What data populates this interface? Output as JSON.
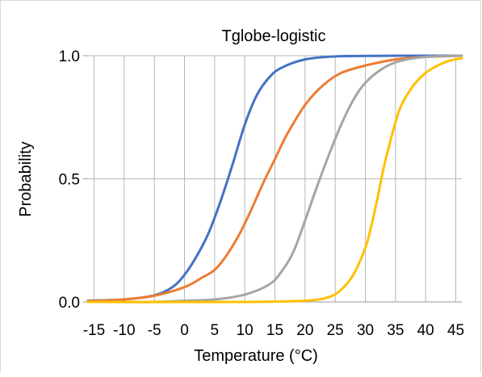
{
  "chart_data": {
    "type": "line",
    "title": "Tglobe-logistic",
    "xlabel": "Temperature (°C)",
    "ylabel": "Probability",
    "xlim": [
      -16,
      46
    ],
    "ylim": [
      0,
      1
    ],
    "x_ticks": [
      -15,
      -10,
      -5,
      0,
      5,
      10,
      15,
      20,
      25,
      30,
      35,
      40,
      45
    ],
    "x_tick_labels": [
      "-15",
      "-10",
      "-5",
      "0",
      "5",
      "10",
      "15",
      "20",
      "25",
      "30",
      "35",
      "40",
      "45"
    ],
    "y_ticks": [
      0,
      0.5,
      1
    ],
    "y_tick_labels": [
      "0.0",
      "0.5",
      "1.0"
    ],
    "grid": true,
    "legend": "none",
    "series": [
      {
        "color": "#4472C4",
        "x": [
          -16,
          -10,
          -5,
          -2,
          0,
          2,
          4,
          6,
          8,
          10,
          12,
          14,
          16,
          20,
          25,
          30,
          35,
          46
        ],
        "y": [
          0.005,
          0.01,
          0.027,
          0.06,
          0.11,
          0.185,
          0.28,
          0.41,
          0.56,
          0.72,
          0.84,
          0.91,
          0.95,
          0.985,
          0.997,
          0.999,
          1.0,
          1.0
        ]
      },
      {
        "color": "#ED7D31",
        "x": [
          -16,
          -10,
          -5,
          0,
          3,
          5,
          7,
          9,
          11,
          13,
          15,
          17,
          20,
          23,
          26,
          30,
          35,
          40,
          46
        ],
        "y": [
          0.003,
          0.01,
          0.025,
          0.06,
          0.1,
          0.13,
          0.19,
          0.27,
          0.37,
          0.48,
          0.58,
          0.68,
          0.8,
          0.88,
          0.93,
          0.96,
          0.985,
          0.995,
          1.0
        ]
      },
      {
        "color": "#A5A5A5",
        "x": [
          -16,
          -5,
          0,
          5,
          10,
          14,
          16,
          18,
          20,
          22,
          24,
          26,
          28,
          30,
          33,
          36,
          40,
          46
        ],
        "y": [
          0.0,
          0.0,
          0.005,
          0.01,
          0.03,
          0.07,
          0.12,
          0.2,
          0.33,
          0.47,
          0.6,
          0.72,
          0.82,
          0.89,
          0.95,
          0.98,
          0.995,
          1.0
        ]
      },
      {
        "color": "#FFC000",
        "x": [
          -16,
          10,
          20,
          24,
          26,
          28,
          30,
          31,
          32,
          33,
          34,
          35,
          36,
          38,
          40,
          42,
          44,
          46
        ],
        "y": [
          0.0,
          0.0,
          0.005,
          0.02,
          0.05,
          0.11,
          0.22,
          0.31,
          0.42,
          0.54,
          0.64,
          0.73,
          0.8,
          0.88,
          0.93,
          0.96,
          0.98,
          0.99
        ]
      }
    ]
  }
}
